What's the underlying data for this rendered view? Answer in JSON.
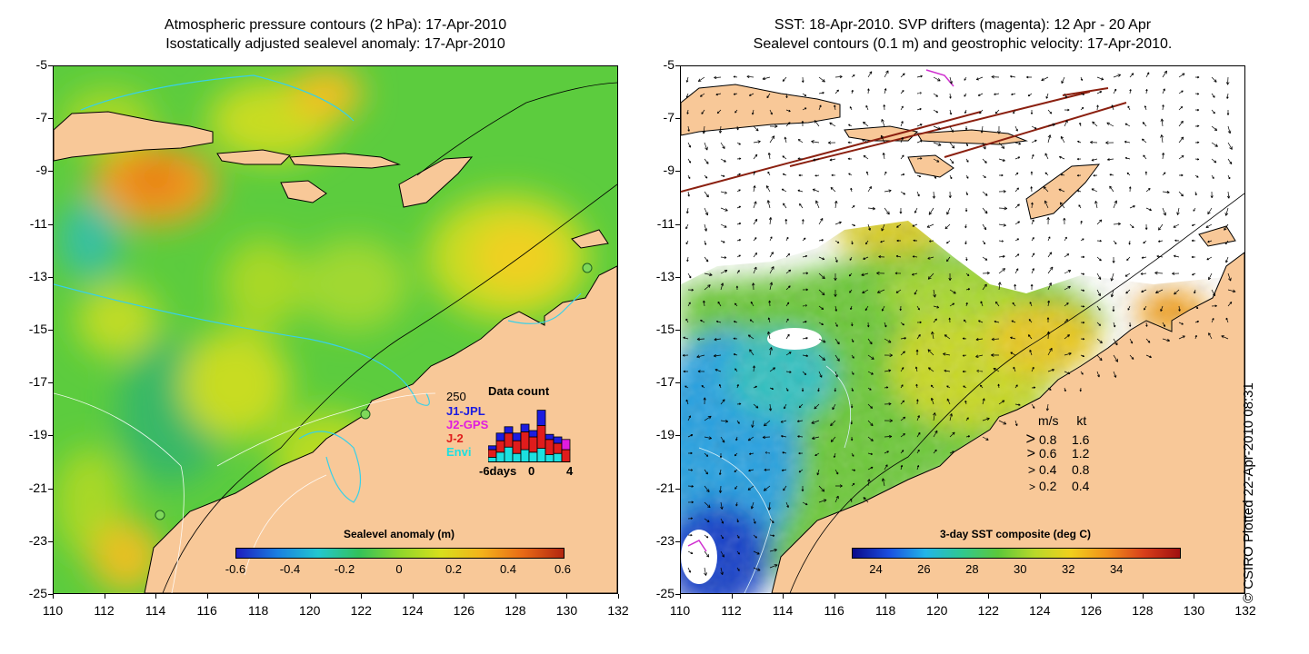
{
  "left": {
    "title_line1": "Atmospheric pressure contours (2 hPa): 17-Apr-2010",
    "title_line2": "Isostatically adjusted sealevel anomaly: 17-Apr-2010",
    "colorbar": {
      "label": "Sealevel anomaly (m)",
      "ticks": [
        "-0.6",
        "-0.4",
        "-0.2",
        "0",
        "0.2",
        "0.4",
        "0.6"
      ],
      "colors": [
        "#1d1dbf",
        "#1a7fe0",
        "#22c7d0",
        "#33c25a",
        "#8fd62b",
        "#d8df1c",
        "#f3b21a",
        "#e86a16",
        "#b3260f"
      ]
    },
    "inset": {
      "title": "Data count",
      "ymax": "250",
      "xticks": [
        "-6days",
        "0",
        "4"
      ],
      "legend": [
        {
          "name": "J1-JPL",
          "color": "#1c1ce0"
        },
        {
          "name": "J2-GPS",
          "color": "#e01ce0"
        },
        {
          "name": "J-2",
          "color": "#e01c1c"
        },
        {
          "name": "Envi",
          "color": "#1ce0e0"
        }
      ],
      "days": [
        -6,
        -5,
        -4,
        -3,
        -2,
        -1,
        0,
        1,
        2,
        3
      ],
      "counts_envi": [
        20,
        40,
        60,
        35,
        50,
        40,
        55,
        30,
        35,
        0
      ],
      "counts_j2": [
        30,
        45,
        55,
        50,
        70,
        60,
        90,
        60,
        40,
        50
      ],
      "counts_j2gps": [
        0,
        0,
        0,
        0,
        0,
        0,
        0,
        0,
        0,
        40
      ],
      "counts_j1": [
        15,
        30,
        25,
        30,
        30,
        25,
        60,
        20,
        25,
        0
      ]
    }
  },
  "right": {
    "title_line1": "SST: 18-Apr-2010. SVP drifters (magenta): 12 Apr - 20 Apr",
    "title_line2": "Sealevel contours (0.1 m) and geostrophic velocity: 17-Apr-2010.",
    "colorbar": {
      "label": "3-day SST composite (deg C)",
      "ticks": [
        "24",
        "26",
        "28",
        "30",
        "32",
        "34"
      ],
      "colors": [
        "#0a0a8a",
        "#1a4fe0",
        "#22b5e8",
        "#30c890",
        "#5cc83a",
        "#b8d82a",
        "#f0d01c",
        "#f0901a",
        "#d8401a",
        "#a01010"
      ]
    },
    "velocity_legend": {
      "header_ms": "m/s",
      "header_kt": "kt",
      "rows": [
        {
          "ms": "0.8",
          "kt": "1.6"
        },
        {
          "ms": "0.6",
          "kt": "1.2"
        },
        {
          "ms": "0.4",
          "kt": "0.8"
        },
        {
          "ms": "0.2",
          "kt": "0.4"
        }
      ]
    }
  },
  "axes": {
    "y_ticks": [
      "-5",
      "-7",
      "-9",
      "-11",
      "-13",
      "-15",
      "-17",
      "-19",
      "-21",
      "-23",
      "-25"
    ],
    "x_ticks": [
      "110",
      "112",
      "114",
      "116",
      "118",
      "120",
      "122",
      "124",
      "126",
      "128",
      "130",
      "132"
    ],
    "lon_range": [
      110,
      132
    ],
    "lat_range": [
      -25,
      -5
    ]
  },
  "credit": "© CSIRO Plotted 22-Apr-2010 08:31",
  "colors": {
    "land": "#f8c898",
    "ocean_base": "#58cc3c",
    "cloud": "#ffffff"
  }
}
